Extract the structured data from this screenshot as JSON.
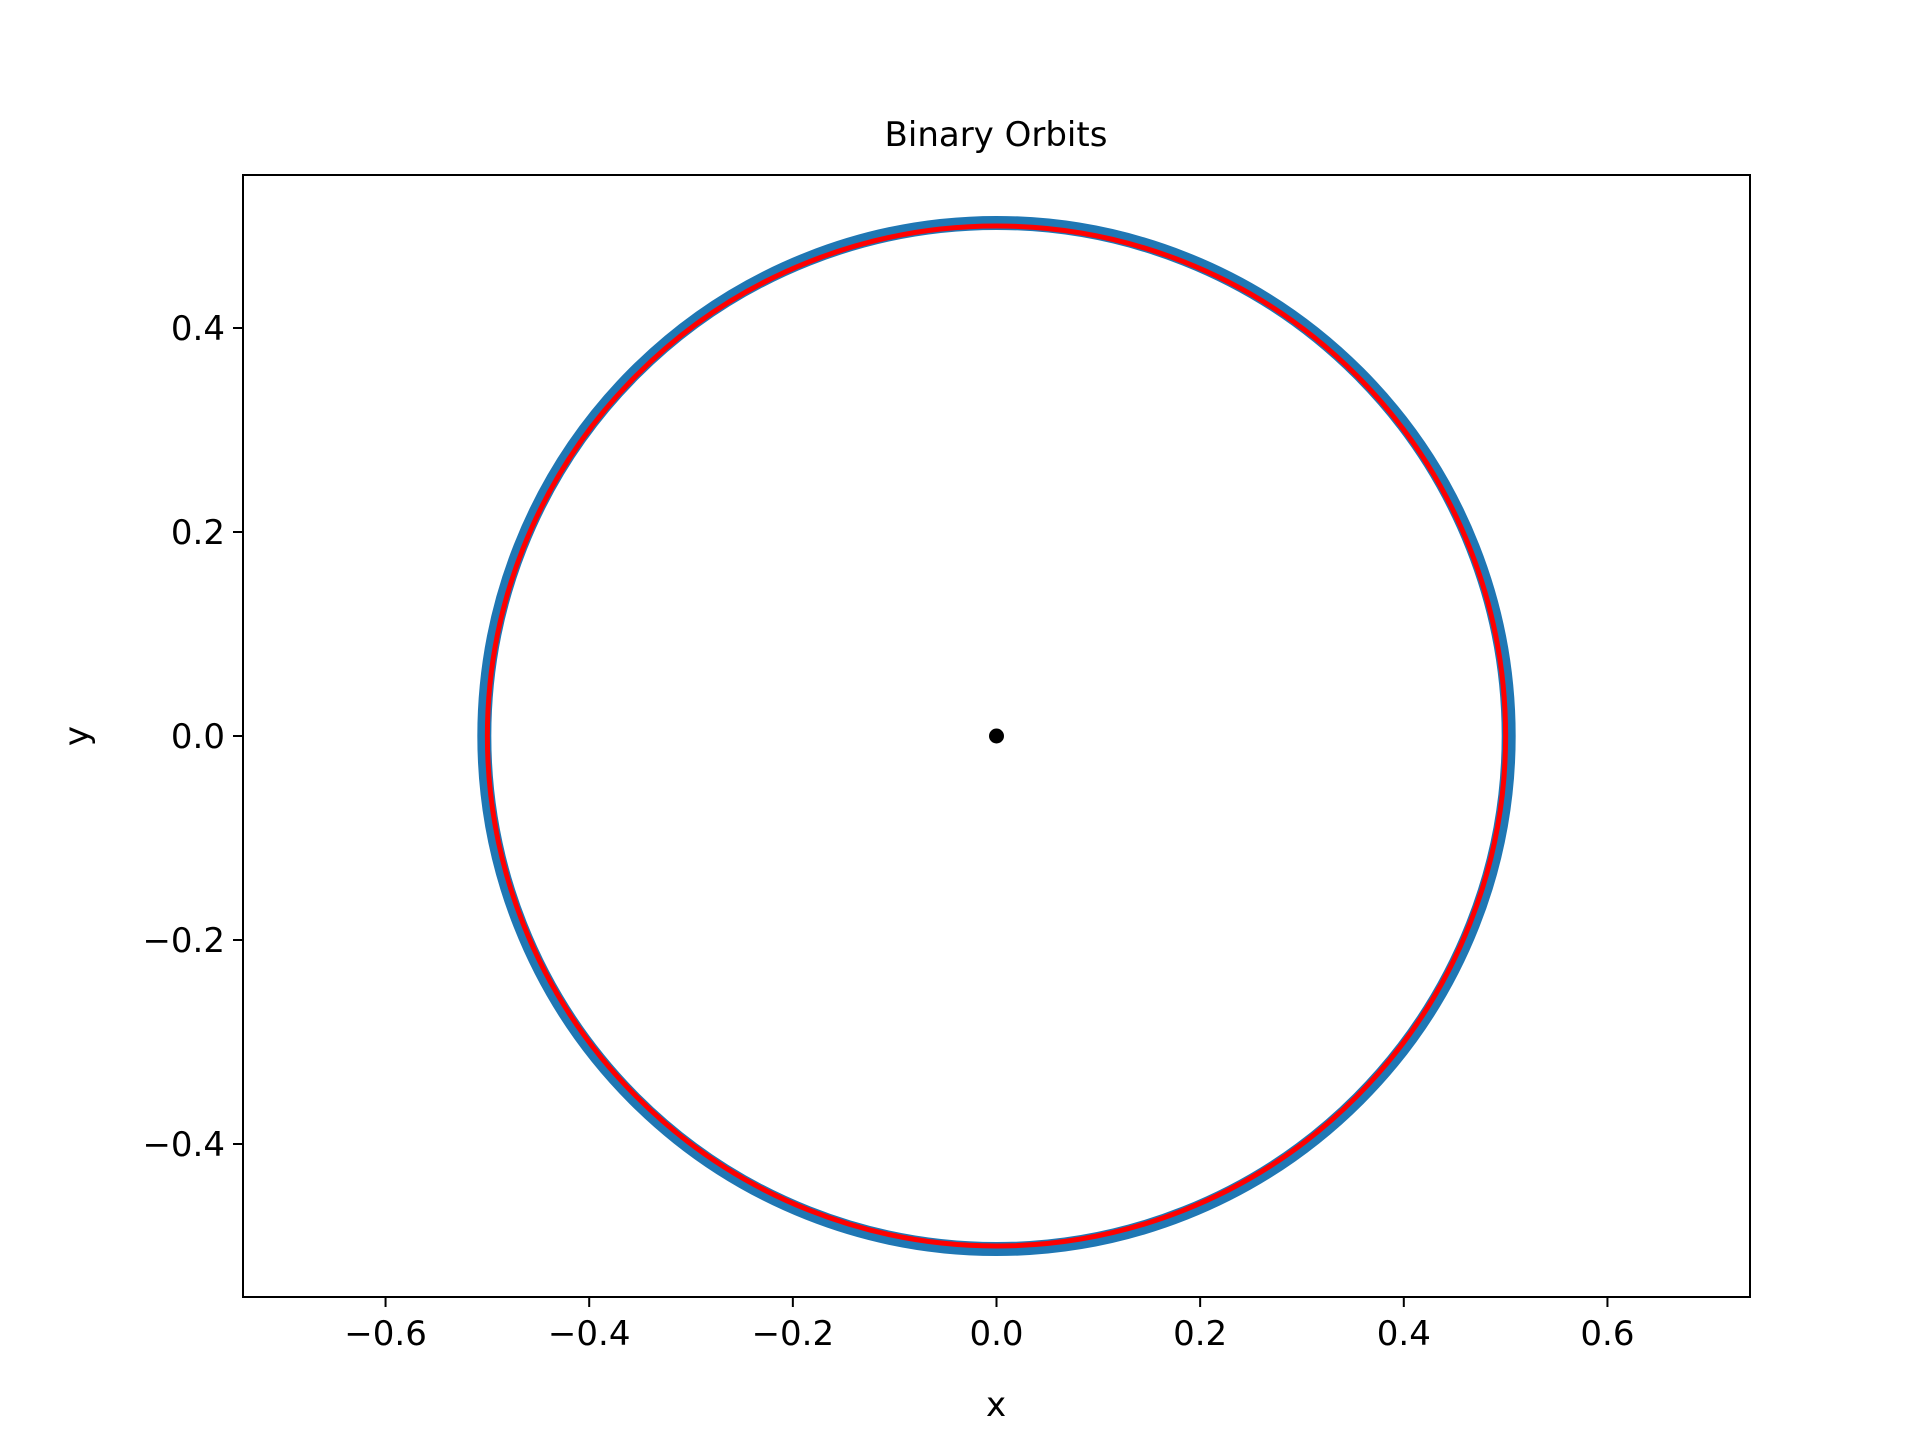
{
  "chart_data": {
    "type": "line",
    "title": "Binary Orbits",
    "xlabel": "x",
    "ylabel": "y",
    "xlim": [
      -0.74,
      0.74
    ],
    "ylim": [
      -0.55,
      0.55
    ],
    "xticks": [
      -0.6,
      -0.4,
      -0.2,
      0.0,
      0.2,
      0.4,
      0.6
    ],
    "yticks": [
      -0.4,
      -0.2,
      0.0,
      0.2,
      0.4
    ],
    "xtick_labels": [
      "−0.6",
      "−0.4",
      "−0.2",
      "0.0",
      "0.2",
      "0.4",
      "0.6"
    ],
    "ytick_labels": [
      "−0.4",
      "−0.2",
      "0.0",
      "0.2",
      "0.4"
    ],
    "grid": false,
    "legend": "none",
    "aspect": "equal",
    "series": [
      {
        "shape": "circle",
        "center": [
          0.0,
          0.0
        ],
        "radius": 0.503,
        "color": "#1f77b4",
        "style": "thick-line"
      },
      {
        "shape": "circle",
        "center": [
          0.0,
          0.0
        ],
        "radius": 0.5,
        "color": "#ff0000",
        "style": "line"
      },
      {
        "shape": "point",
        "x": [
          0.0
        ],
        "y": [
          0.0
        ],
        "color": "#000000",
        "style": "dot"
      }
    ]
  }
}
